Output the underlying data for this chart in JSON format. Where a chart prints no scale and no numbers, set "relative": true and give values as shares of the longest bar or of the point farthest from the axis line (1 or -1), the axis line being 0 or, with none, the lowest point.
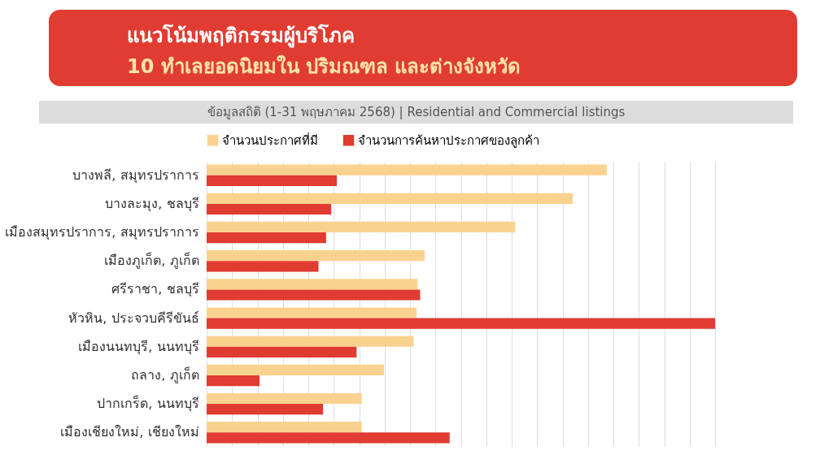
{
  "chart_data": {
    "type": "bar",
    "orientation": "horizontal",
    "relative": true,
    "title": "แนวโน้มพฤติกรรมผู้บริโภค",
    "subtitle": "10 ทำเลยอดนิยมใน ปริมณฑล และต่างจังหวัด",
    "annotations": [
      "ข้อมูลสถิติ (1-31 พฤษภาคม 2568) | Residential and Commercial listings"
    ],
    "categories": [
      "บางพลี, สมุทรปราการ",
      "บางละมุง, ชลบุรี",
      "เมืองสมุทรปราการ, สมุทรปราการ",
      "เมืองภูเก็ต, ภูเก็ต",
      "ศรีราชา, ชลบุรี",
      "หัวหิน, ประจวบคีรีขันธ์",
      "เมืองนนทบุรี, นนทบุรี",
      "ถลาง, ภูเก็ต",
      "ปากเกร็ด, นนทบุรี",
      "เมืองเชียงใหม่, เชียงใหม่"
    ],
    "series": [
      {
        "name": "จำนวนประกาศที่มี",
        "color": "#fad28f",
        "values": [
          0.787,
          0.72,
          0.607,
          0.429,
          0.415,
          0.413,
          0.407,
          0.349,
          0.305,
          0.305
        ]
      },
      {
        "name": "จำนวนการค้นหาประกาศของลูกค้า",
        "color": "#e03c31",
        "values": [
          0.256,
          0.245,
          0.235,
          0.22,
          0.42,
          1,
          0.295,
          0.104,
          0.229,
          0.478
        ]
      }
    ],
    "grid": "x",
    "legend": "top"
  }
}
